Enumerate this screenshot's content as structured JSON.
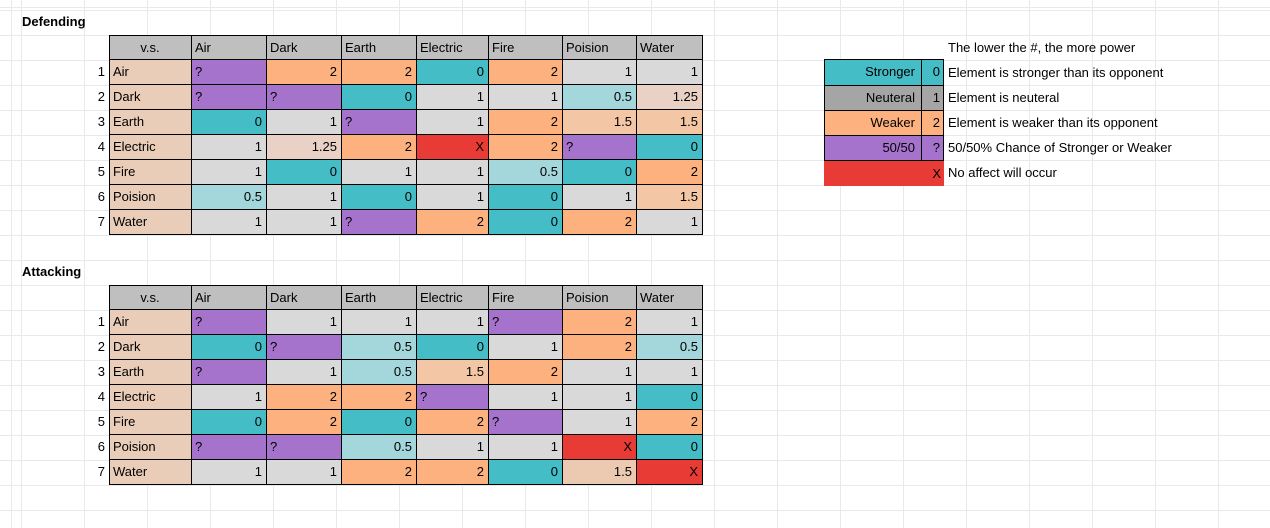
{
  "palette": {
    "headergray": "#BFBFBF",
    "labeltan": "#EACDB8",
    "gray": "#D9D9D9",
    "teal": "#45BDC7",
    "lightteal": "#A4D7DB",
    "orange": "#FCB17E",
    "lightorange": "#F3C6A5",
    "paletan": "#E9D2C5",
    "tan": "#EBCAB1",
    "purple": "#A673CC",
    "legendgray": "#A5A5A5",
    "red": "#E83B36"
  },
  "defending": {
    "title": "Defending",
    "corner": "v.s.",
    "columns": [
      "Air",
      "Dark",
      "Earth",
      "Electric",
      "Fire",
      "Poision",
      "Water"
    ],
    "rows": [
      {
        "num": "1",
        "label": "Air",
        "cells": [
          [
            "?",
            "purple"
          ],
          [
            "2",
            "orange"
          ],
          [
            "2",
            "orange"
          ],
          [
            "0",
            "teal"
          ],
          [
            "2",
            "orange"
          ],
          [
            "1",
            "gray"
          ],
          [
            "1",
            "gray"
          ]
        ]
      },
      {
        "num": "2",
        "label": "Dark",
        "cells": [
          [
            "?",
            "purple"
          ],
          [
            "?",
            "purple"
          ],
          [
            "0",
            "teal"
          ],
          [
            "1",
            "gray"
          ],
          [
            "1",
            "gray"
          ],
          [
            "0.5",
            "lightteal"
          ],
          [
            "1.25",
            "paletan"
          ]
        ]
      },
      {
        "num": "3",
        "label": "Earth",
        "cells": [
          [
            "0",
            "teal"
          ],
          [
            "1",
            "gray"
          ],
          [
            "?",
            "purple"
          ],
          [
            "1",
            "gray"
          ],
          [
            "2",
            "orange"
          ],
          [
            "1.5",
            "lightorange"
          ],
          [
            "1.5",
            "lightorange"
          ]
        ]
      },
      {
        "num": "4",
        "label": "Electric",
        "cells": [
          [
            "1",
            "gray"
          ],
          [
            "1.25",
            "paletan"
          ],
          [
            "2",
            "orange"
          ],
          [
            "X",
            "red"
          ],
          [
            "2",
            "orange"
          ],
          [
            "?",
            "purple"
          ],
          [
            "0",
            "teal"
          ]
        ]
      },
      {
        "num": "5",
        "label": "Fire",
        "cells": [
          [
            "1",
            "gray"
          ],
          [
            "0",
            "teal"
          ],
          [
            "1",
            "gray"
          ],
          [
            "1",
            "gray"
          ],
          [
            "0.5",
            "lightteal"
          ],
          [
            "0",
            "teal"
          ],
          [
            "2",
            "orange"
          ]
        ]
      },
      {
        "num": "6",
        "label": "Poision",
        "cells": [
          [
            "0.5",
            "lightteal"
          ],
          [
            "1",
            "gray"
          ],
          [
            "0",
            "teal"
          ],
          [
            "1",
            "gray"
          ],
          [
            "0",
            "teal"
          ],
          [
            "1",
            "gray"
          ],
          [
            "1.5",
            "lightorange"
          ]
        ]
      },
      {
        "num": "7",
        "label": "Water",
        "cells": [
          [
            "1",
            "gray"
          ],
          [
            "1",
            "gray"
          ],
          [
            "?",
            "purple"
          ],
          [
            "2",
            "orange"
          ],
          [
            "0",
            "teal"
          ],
          [
            "2",
            "orange"
          ],
          [
            "1",
            "gray"
          ]
        ]
      }
    ]
  },
  "attacking": {
    "title": "Attacking",
    "corner": "v.s.",
    "columns": [
      "Air",
      "Dark",
      "Earth",
      "Electric",
      "Fire",
      "Poision",
      "Water"
    ],
    "rows": [
      {
        "num": "1",
        "label": "Air",
        "cells": [
          [
            "?",
            "purple"
          ],
          [
            "1",
            "gray"
          ],
          [
            "1",
            "gray"
          ],
          [
            "1",
            "gray"
          ],
          [
            "?",
            "purple"
          ],
          [
            "2",
            "orange"
          ],
          [
            "1",
            "gray"
          ]
        ]
      },
      {
        "num": "2",
        "label": "Dark",
        "cells": [
          [
            "0",
            "teal"
          ],
          [
            "?",
            "purple"
          ],
          [
            "0.5",
            "lightteal"
          ],
          [
            "0",
            "teal"
          ],
          [
            "1",
            "gray"
          ],
          [
            "2",
            "orange"
          ],
          [
            "0.5",
            "lightteal"
          ]
        ]
      },
      {
        "num": "3",
        "label": "Earth",
        "cells": [
          [
            "?",
            "purple"
          ],
          [
            "1",
            "gray"
          ],
          [
            "0.5",
            "lightteal"
          ],
          [
            "1.5",
            "lightorange"
          ],
          [
            "2",
            "orange"
          ],
          [
            "1",
            "gray"
          ],
          [
            "1",
            "gray"
          ]
        ]
      },
      {
        "num": "4",
        "label": "Electric",
        "cells": [
          [
            "1",
            "gray"
          ],
          [
            "2",
            "orange"
          ],
          [
            "2",
            "orange"
          ],
          [
            "?",
            "purple"
          ],
          [
            "1",
            "gray"
          ],
          [
            "1",
            "gray"
          ],
          [
            "0",
            "teal"
          ]
        ]
      },
      {
        "num": "5",
        "label": "Fire",
        "cells": [
          [
            "0",
            "teal"
          ],
          [
            "2",
            "orange"
          ],
          [
            "0",
            "teal"
          ],
          [
            "2",
            "orange"
          ],
          [
            "?",
            "purple"
          ],
          [
            "1",
            "gray"
          ],
          [
            "2",
            "orange"
          ]
        ]
      },
      {
        "num": "6",
        "label": "Poision",
        "cells": [
          [
            "?",
            "purple"
          ],
          [
            "?",
            "purple"
          ],
          [
            "0.5",
            "lightteal"
          ],
          [
            "1",
            "gray"
          ],
          [
            "1",
            "gray"
          ],
          [
            "X",
            "red"
          ],
          [
            "0",
            "teal"
          ]
        ]
      },
      {
        "num": "7",
        "label": "Water",
        "cells": [
          [
            "1",
            "gray"
          ],
          [
            "1",
            "gray"
          ],
          [
            "2",
            "orange"
          ],
          [
            "2",
            "orange"
          ],
          [
            "0",
            "teal"
          ],
          [
            "1.5",
            "tan"
          ],
          [
            "X",
            "red"
          ]
        ]
      }
    ]
  },
  "legend": {
    "rows": [
      {
        "label": "Stronger",
        "value": "0",
        "color": "teal"
      },
      {
        "label": "Neuteral",
        "value": "1",
        "color": "legendgray"
      },
      {
        "label": "Weaker",
        "value": "2",
        "color": "orange"
      },
      {
        "label": "50/50",
        "value": "?",
        "color": "purple"
      }
    ],
    "x_row": {
      "label": "",
      "value": "X",
      "color": "red"
    }
  },
  "notes": [
    "The lower the #, the more power",
    "Element is stronger than its opponent",
    "Element is neuteral",
    "Element is weaker than its opponent",
    "50/50% Chance of Stronger or Weaker",
    "No affect will occur"
  ]
}
